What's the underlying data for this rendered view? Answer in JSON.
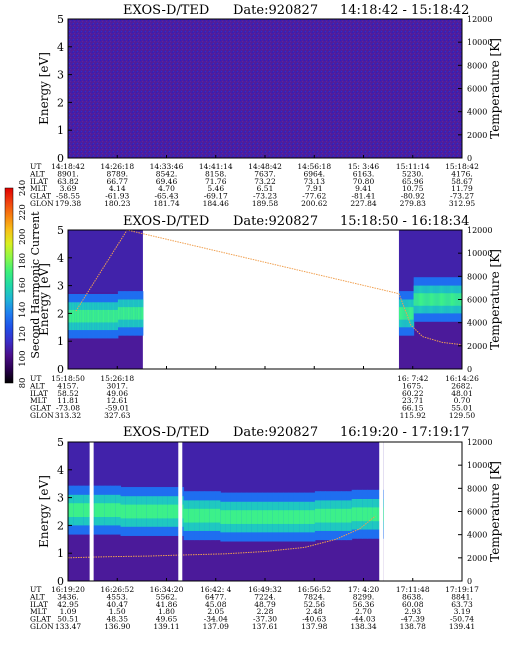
{
  "colorbar": {
    "label": "Second Harmonic Current",
    "ticks": [
      "80",
      "100",
      "120",
      "140",
      "160",
      "180",
      "200",
      "220",
      "240"
    ],
    "colors": [
      "#000000",
      "#2a0050",
      "#4b0f8c",
      "#3a2ec8",
      "#1f50e8",
      "#1f7ef0",
      "#1fb4d6",
      "#20d8a8",
      "#3cf07a",
      "#8cf848",
      "#d8f020",
      "#f8c018",
      "#f88010",
      "#f04010",
      "#e00000"
    ]
  },
  "chart_data": [
    {
      "type": "heatmap",
      "title": "EXOS-D/TED",
      "date_label": "Date:920827",
      "time_range": "14:18:42 - 15:18:42",
      "ylabel": "Energy [eV]",
      "y2label": "Temperature [K]",
      "ylim": [
        0,
        5
      ],
      "y_ticks": [
        "0",
        "1",
        "2",
        "3",
        "4",
        "5"
      ],
      "y2lim": [
        0,
        12000
      ],
      "y2_ticks": [
        "0",
        "2000",
        "4000",
        "6000",
        "8000",
        "10000",
        "12000"
      ],
      "row_labels": [
        "UT",
        "ALT",
        "ILAT",
        "MLT",
        "GLAT",
        "GLON"
      ],
      "columns": [
        [
          "14:18:42",
          "8901.",
          "63.82",
          "3.69",
          "-58.55",
          "179.38"
        ],
        [
          "14:26:18",
          "8789.",
          "66.77",
          "4.14",
          "-61.93",
          "180.23"
        ],
        [
          "14:33:46",
          "8542.",
          "69.46",
          "4.70",
          "-65.43",
          "181.74"
        ],
        [
          "14:41:14",
          "8158.",
          "71.76",
          "5.46",
          "-69.17",
          "184.46"
        ],
        [
          "14:48:42",
          "7637.",
          "73.22",
          "6.51",
          "-73.23",
          "189.58"
        ],
        [
          "14:56:18",
          "6964.",
          "73.13",
          "7.91",
          "-77.62",
          "200.62"
        ],
        [
          "15: 3:46",
          "6163.",
          "70.80",
          "9.41",
          "-81.41",
          "227.84"
        ],
        [
          "15:11:14",
          "5230.",
          "65.96",
          "10.75",
          "-80.92",
          "279.83"
        ],
        [
          "15:18:42",
          "4176.",
          "58.67",
          "11.79",
          "-73.27",
          "312.95"
        ]
      ],
      "data_segments": [
        {
          "from": 0,
          "to": 1
        }
      ],
      "band": null,
      "temperature": null,
      "stripes": []
    },
    {
      "type": "heatmap",
      "title": "EXOS-D/TED",
      "date_label": "Date:920827",
      "time_range": "15:18:50 - 16:18:34",
      "ylabel": "Energy [eV]",
      "y2label": "Temperature [K]",
      "ylim": [
        0,
        5
      ],
      "y_ticks": [
        "0",
        "1",
        "2",
        "3",
        "4",
        "5"
      ],
      "y2lim": [
        0,
        12000
      ],
      "y2_ticks": [
        "0",
        "2000",
        "4000",
        "6000",
        "8000",
        "10000",
        "12000"
      ],
      "row_labels": [
        "UT",
        "ALT",
        "ILAT",
        "MLT",
        "GLAT",
        "GLON"
      ],
      "columns": [
        [
          "15:18:50",
          "4157.",
          "58.52",
          "11.81",
          "-73.08",
          "313.32"
        ],
        [
          "15:26:18",
          "3017.",
          "49.06",
          "12.61",
          "-59.01",
          "327.63"
        ],
        null,
        null,
        null,
        null,
        null,
        [
          "16: 7:42",
          "1675.",
          "60.22",
          "23.71",
          "66.15",
          "115.92"
        ],
        [
          "16:14:26",
          "2682.",
          "48.01",
          "0.70",
          "55.01",
          "129.50"
        ]
      ],
      "data_segments": [
        {
          "from": 0,
          "to": 0.19
        },
        {
          "from": 0.84,
          "to": 1
        }
      ],
      "band": {
        "center_ev": [
          1.9,
          1.9,
          2.0,
          2.0,
          2.0,
          2.0,
          2.0,
          2.0,
          2.0,
          2.0,
          2.0,
          2.5,
          2.5
        ],
        "width_ev": 0.5
      },
      "temperature": {
        "x": [
          0.02,
          0.15,
          0.84,
          0.87,
          0.9,
          0.95,
          1.0
        ],
        "values": [
          5000,
          12000,
          6500,
          3800,
          2800,
          2300,
          2100
        ]
      },
      "stripes": []
    },
    {
      "type": "heatmap",
      "title": "EXOS-D/TED",
      "date_label": "Date:920827",
      "time_range": "16:19:20 - 17:19:17",
      "ylabel": "Energy [eV]",
      "y2label": "Temperature [K]",
      "ylim": [
        0,
        5
      ],
      "y_ticks": [
        "0",
        "1",
        "2",
        "3",
        "4",
        "5"
      ],
      "y2lim": [
        0,
        12000
      ],
      "y2_ticks": [
        "0",
        "2000",
        "4000",
        "6000",
        "8000",
        "10000",
        "12000"
      ],
      "row_labels": [
        "UT",
        "ALT",
        "ILAT",
        "MLT",
        "GLAT",
        "GLON"
      ],
      "columns": [
        [
          "16:19:20",
          "3436.",
          "42.95",
          "1.09",
          "50.51",
          "133.47"
        ],
        [
          "16:26:52",
          "4553.",
          "40.47",
          "1.50",
          "48.35",
          "136.90"
        ],
        [
          "16:34:20",
          "5562.",
          "41.86",
          "1.80",
          "49.65",
          "139.11"
        ],
        [
          "16:42: 4",
          "6477.",
          "45.08",
          "2.05",
          "-34.04",
          "137.09"
        ],
        [
          "16:49:32",
          "7224.",
          "48.79",
          "2.28",
          "-37.30",
          "137.61"
        ],
        [
          "16:56:52",
          "7824.",
          "52.56",
          "2.48",
          "-40.63",
          "137.98"
        ],
        [
          "17: 4:20",
          "8299.",
          "56.36",
          "2.70",
          "-44.03",
          "138.34"
        ],
        [
          "17:11:48",
          "8638.",
          "60.08",
          "2.93",
          "-47.39",
          "138.78"
        ],
        [
          "17:19:17",
          "8841.",
          "63.73",
          "3.19",
          "-50.74",
          "139.41"
        ]
      ],
      "data_segments": [
        {
          "from": 0,
          "to": 0.8
        }
      ],
      "band": {
        "center_ev": [
          2.55,
          2.55,
          2.5,
          2.5,
          2.35,
          2.3,
          2.3,
          2.3,
          2.35,
          2.4,
          2.45,
          2.3,
          2.0
        ],
        "width_ev": 0.55
      },
      "temperature": {
        "x": [
          0.0,
          0.1,
          0.2,
          0.3,
          0.4,
          0.5,
          0.6,
          0.68,
          0.74,
          0.78
        ],
        "values": [
          2000,
          2100,
          2150,
          2250,
          2350,
          2550,
          2900,
          3600,
          4500,
          5600
        ]
      },
      "stripes": [
        0.06,
        0.285,
        0.795
      ]
    }
  ]
}
